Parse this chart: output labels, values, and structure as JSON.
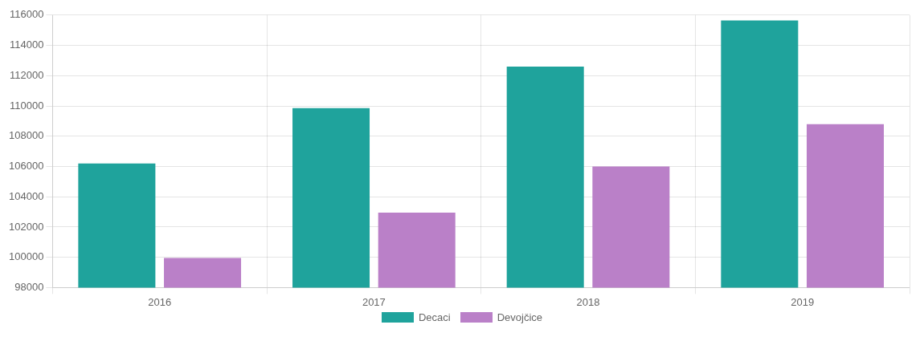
{
  "chart_data": {
    "type": "bar",
    "categories": [
      "2016",
      "2017",
      "2018",
      "2019"
    ],
    "series": [
      {
        "name": "Decaci",
        "color": "#1fa39c",
        "values": [
          106200,
          109850,
          112600,
          115650
        ]
      },
      {
        "name": "Devojčice",
        "color": "#ba80c8",
        "values": [
          99950,
          102950,
          106000,
          108800
        ]
      }
    ],
    "ylim": [
      98000,
      116000
    ],
    "yticks": [
      98000,
      100000,
      102000,
      104000,
      106000,
      108000,
      110000,
      112000,
      114000,
      116000
    ],
    "grid": true,
    "legend": "bottom"
  }
}
